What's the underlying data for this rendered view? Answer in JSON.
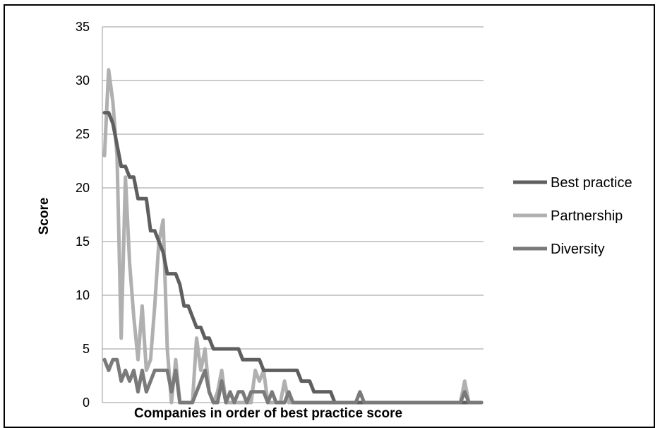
{
  "chart_data": {
    "type": "line",
    "title": "",
    "xlabel": "Companies in order of best practice score",
    "ylabel": "Score",
    "ylim": [
      0,
      35
    ],
    "yticks": [
      0,
      5,
      10,
      15,
      20,
      25,
      30,
      35
    ],
    "grid": true,
    "legend": "right",
    "x": [
      1,
      2,
      3,
      4,
      5,
      6,
      7,
      8,
      9,
      10,
      11,
      12,
      13,
      14,
      15,
      16,
      17,
      18,
      19,
      20,
      21,
      22,
      23,
      24,
      25,
      26,
      27,
      28,
      29,
      30,
      31,
      32,
      33,
      34,
      35,
      36,
      37,
      38,
      39,
      40,
      41,
      42,
      43,
      44,
      45,
      46,
      47,
      48,
      49,
      50,
      51,
      52,
      53,
      54,
      55,
      56,
      57,
      58,
      59,
      60,
      61,
      62,
      63,
      64,
      65,
      66,
      67,
      68,
      69,
      70,
      71,
      72,
      73,
      74,
      75,
      76,
      77,
      78,
      79,
      80,
      81,
      82,
      83,
      84,
      85,
      86,
      87,
      88,
      89,
      90,
      91
    ],
    "series": [
      {
        "name": "Best practice",
        "color": "#5f5f5f",
        "values": [
          27,
          27,
          26,
          24,
          22,
          22,
          21,
          21,
          19,
          19,
          19,
          16,
          16,
          15,
          14,
          12,
          12,
          12,
          11,
          9,
          9,
          8,
          7,
          7,
          6,
          6,
          5,
          5,
          5,
          5,
          5,
          5,
          5,
          4,
          4,
          4,
          4,
          4,
          3,
          3,
          3,
          3,
          3,
          3,
          3,
          3,
          3,
          2,
          2,
          2,
          1,
          1,
          1,
          1,
          1,
          0,
          0,
          0,
          0,
          0,
          0,
          0,
          0,
          0,
          0,
          0,
          0,
          0,
          0,
          0,
          0,
          0,
          0,
          0,
          0,
          0,
          0,
          0,
          0,
          0,
          0,
          0,
          0,
          0,
          0,
          0,
          0,
          0,
          0,
          0,
          0
        ]
      },
      {
        "name": "Partnership",
        "color": "#b0b0b0",
        "values": [
          23,
          31,
          28,
          23,
          6,
          21,
          13,
          8,
          4,
          9,
          3,
          4,
          9,
          15,
          17,
          5,
          0,
          4,
          0,
          0,
          0,
          0,
          6,
          3,
          5,
          1,
          0,
          1,
          3,
          0,
          0,
          0,
          0,
          0,
          0,
          0,
          3,
          2,
          3,
          0,
          0,
          0,
          0,
          2,
          0,
          0,
          0,
          0,
          0,
          0,
          0,
          0,
          0,
          0,
          0,
          0,
          0,
          0,
          0,
          0,
          0,
          0,
          0,
          0,
          0,
          0,
          0,
          0,
          0,
          0,
          0,
          0,
          0,
          0,
          0,
          0,
          0,
          0,
          0,
          0,
          0,
          0,
          0,
          0,
          0,
          0,
          2,
          0,
          0,
          0,
          0
        ]
      },
      {
        "name": "Diversity",
        "color": "#7a7a7a",
        "values": [
          4,
          3,
          4,
          4,
          2,
          3,
          2,
          3,
          1,
          3,
          1,
          2,
          3,
          3,
          3,
          3,
          1,
          3,
          0,
          0,
          0,
          0,
          1,
          2,
          3,
          1,
          0,
          0,
          2,
          0,
          1,
          0,
          1,
          1,
          0,
          1,
          1,
          1,
          1,
          0,
          1,
          0,
          0,
          0,
          1,
          0,
          0,
          0,
          0,
          0,
          0,
          0,
          0,
          0,
          0,
          0,
          0,
          0,
          0,
          0,
          0,
          1,
          0,
          0,
          0,
          0,
          0,
          0,
          0,
          0,
          0,
          0,
          0,
          0,
          0,
          0,
          0,
          0,
          0,
          0,
          0,
          0,
          0,
          0,
          0,
          0,
          1,
          0,
          0,
          0,
          0
        ]
      }
    ]
  }
}
